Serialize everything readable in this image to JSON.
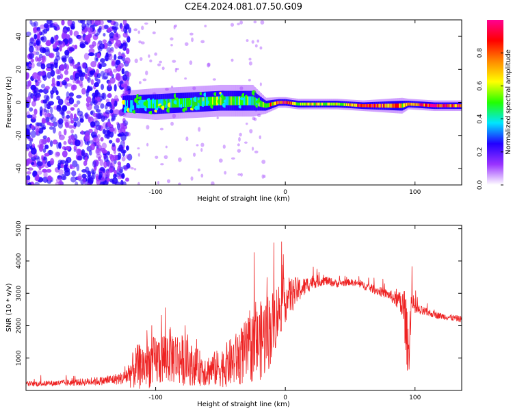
{
  "figure": {
    "title": "C2E4.2024.081.07.50.G09"
  },
  "chart_data": [
    {
      "type": "heatmap",
      "xlabel": "Height of straight line (km)",
      "ylabel": "Frequency (Hz)",
      "xlim": [
        -200,
        136
      ],
      "ylim": [
        -50,
        50
      ],
      "x_ticks": [
        -100,
        0,
        100
      ],
      "y_ticks": [
        -40,
        -20,
        0,
        20,
        40
      ],
      "colorbar": {
        "label": "Normalized spectral amplitude",
        "range": [
          0.0,
          1.0
        ],
        "ticks": [
          "0.0",
          "0.2",
          "0.4",
          "0.6",
          "0.8"
        ],
        "colors": [
          "#ffffff",
          "#9933ff",
          "#2200ff",
          "#00e5ff",
          "#22ff00",
          "#ffff00",
          "#ff8800",
          "#ff0000",
          "#ff0090"
        ]
      },
      "signal_band": [
        {
          "x": -125,
          "center_hz": -1,
          "halfwidth_hz": 5,
          "amp": 0.3
        },
        {
          "x": -100,
          "center_hz": -1,
          "halfwidth_hz": 6,
          "amp": 0.45
        },
        {
          "x": -75,
          "center_hz": 0,
          "halfwidth_hz": 6,
          "amp": 0.45
        },
        {
          "x": -50,
          "center_hz": 1,
          "halfwidth_hz": 6,
          "amp": 0.5
        },
        {
          "x": -25,
          "center_hz": 1,
          "halfwidth_hz": 6,
          "amp": 0.45
        },
        {
          "x": -15,
          "center_hz": -2,
          "halfwidth_hz": 3,
          "amp": 0.55
        },
        {
          "x": -5,
          "center_hz": 0,
          "halfwidth_hz": 2,
          "amp": 0.85
        },
        {
          "x": 0,
          "center_hz": 0,
          "halfwidth_hz": 2,
          "amp": 0.9
        },
        {
          "x": 10,
          "center_hz": -1,
          "halfwidth_hz": 2,
          "amp": 0.6
        },
        {
          "x": 40,
          "center_hz": -1,
          "halfwidth_hz": 2,
          "amp": 0.6
        },
        {
          "x": 60,
          "center_hz": -2,
          "halfwidth_hz": 2,
          "amp": 0.9
        },
        {
          "x": 90,
          "center_hz": -2,
          "halfwidth_hz": 3,
          "amp": 0.7
        },
        {
          "x": 95,
          "center_hz": -1,
          "halfwidth_hz": 2,
          "amp": 0.75
        },
        {
          "x": 115,
          "center_hz": -2,
          "halfwidth_hz": 2,
          "amp": 0.95
        },
        {
          "x": 136,
          "center_hz": -2,
          "halfwidth_hz": 2,
          "amp": 0.8
        }
      ]
    },
    {
      "type": "line",
      "xlabel": "Height of straight line (km)",
      "ylabel": "SNR (10 * v/v)",
      "xlim": [
        -200,
        136
      ],
      "ylim": [
        0,
        5100
      ],
      "x_ticks": [
        -100,
        0,
        100
      ],
      "y_ticks": [
        1000,
        2000,
        3000,
        4000,
        5000
      ],
      "series": [
        {
          "color": "#ee2222",
          "x": [
            -200,
            -180,
            -160,
            -140,
            -125,
            -115,
            -100,
            -90,
            -80,
            -70,
            -60,
            -50,
            -40,
            -30,
            -20,
            -15,
            -10,
            -5,
            0,
            5,
            10,
            15,
            20,
            30,
            40,
            50,
            60,
            70,
            80,
            88,
            92,
            95,
            97,
            100,
            110,
            120,
            136
          ],
          "mean": [
            200,
            220,
            250,
            300,
            380,
            700,
            900,
            1100,
            950,
            750,
            620,
            700,
            900,
            1200,
            1500,
            1700,
            2000,
            2500,
            2800,
            2950,
            3100,
            3200,
            3350,
            3400,
            3300,
            3350,
            3250,
            3100,
            2950,
            2750,
            2400,
            1100,
            2700,
            2500,
            2400,
            2300,
            2200
          ],
          "noise": [
            80,
            90,
            110,
            140,
            200,
            700,
            800,
            900,
            800,
            600,
            500,
            600,
            800,
            1000,
            1200,
            1300,
            1100,
            900,
            700,
            550,
            400,
            300,
            230,
            150,
            120,
            100,
            120,
            150,
            150,
            300,
            900,
            900,
            600,
            200,
            120,
            100,
            100
          ]
        }
      ]
    }
  ]
}
